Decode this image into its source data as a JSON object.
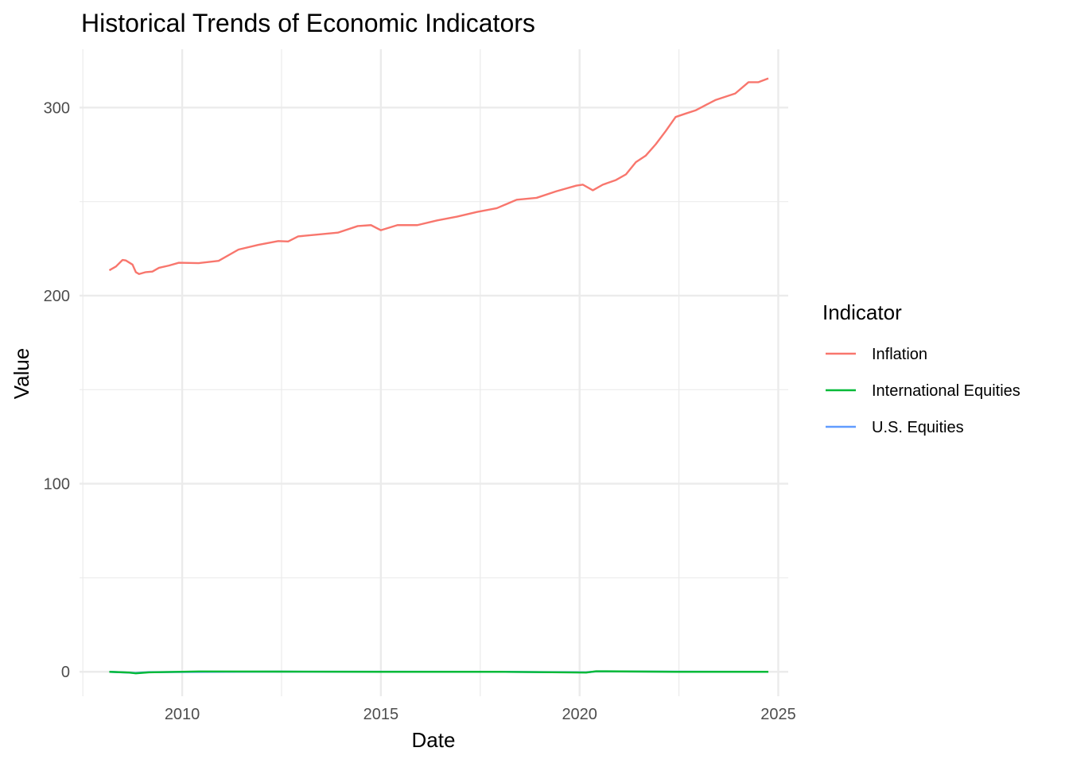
{
  "chart_data": {
    "type": "line",
    "title": "Historical Trends of Economic Indicators",
    "xlabel": "Date",
    "ylabel": "Value",
    "x_ticks": [
      "2010",
      "2015",
      "2020",
      "2025"
    ],
    "y_ticks": [
      "0",
      "100",
      "200",
      "300"
    ],
    "xlim": [
      "2007-06-01",
      "2025-04-01"
    ],
    "ylim": [
      -13,
      331
    ],
    "grid": true,
    "legend": {
      "title": "Indicator",
      "position": "right"
    },
    "series": [
      {
        "name": "Inflation",
        "color": "#F8766D",
        "points": [
          [
            "2008-03-01",
            213.5
          ],
          [
            "2008-05-01",
            215.5
          ],
          [
            "2008-07-01",
            219.0
          ],
          [
            "2008-08-01",
            218.7
          ],
          [
            "2008-10-01",
            216.5
          ],
          [
            "2008-11-01",
            212.5
          ],
          [
            "2008-12-01",
            211.5
          ],
          [
            "2009-02-01",
            212.5
          ],
          [
            "2009-04-01",
            212.8
          ],
          [
            "2009-06-01",
            214.8
          ],
          [
            "2009-09-01",
            216.0
          ],
          [
            "2009-12-01",
            217.5
          ],
          [
            "2010-06-01",
            217.3
          ],
          [
            "2010-12-01",
            218.5
          ],
          [
            "2011-06-01",
            224.5
          ],
          [
            "2011-12-01",
            227.0
          ],
          [
            "2012-06-01",
            229.0
          ],
          [
            "2012-09-01",
            228.8
          ],
          [
            "2012-12-01",
            231.5
          ],
          [
            "2013-06-01",
            232.5
          ],
          [
            "2013-12-01",
            233.5
          ],
          [
            "2014-06-01",
            237.0
          ],
          [
            "2014-10-01",
            237.5
          ],
          [
            "2015-01-01",
            234.8
          ],
          [
            "2015-06-01",
            237.5
          ],
          [
            "2015-12-01",
            237.5
          ],
          [
            "2016-06-01",
            240.0
          ],
          [
            "2016-12-01",
            242.0
          ],
          [
            "2017-06-01",
            244.5
          ],
          [
            "2017-12-01",
            246.5
          ],
          [
            "2018-06-01",
            251.0
          ],
          [
            "2018-12-01",
            252.0
          ],
          [
            "2019-06-01",
            255.5
          ],
          [
            "2019-12-01",
            258.5
          ],
          [
            "2020-02-01",
            259.0
          ],
          [
            "2020-05-01",
            256.0
          ],
          [
            "2020-08-01",
            259.0
          ],
          [
            "2020-12-01",
            261.5
          ],
          [
            "2021-03-01",
            264.5
          ],
          [
            "2021-06-01",
            271.0
          ],
          [
            "2021-09-01",
            274.5
          ],
          [
            "2021-12-01",
            280.5
          ],
          [
            "2022-03-01",
            287.5
          ],
          [
            "2022-06-01",
            295.0
          ],
          [
            "2022-09-01",
            296.8
          ],
          [
            "2022-12-01",
            298.5
          ],
          [
            "2023-06-01",
            304.0
          ],
          [
            "2023-12-01",
            307.5
          ],
          [
            "2024-04-01",
            313.5
          ],
          [
            "2024-07-01",
            313.5
          ],
          [
            "2024-10-01",
            315.5
          ]
        ]
      },
      {
        "name": "International Equities",
        "color": "#00BA38",
        "points": [
          [
            "2008-03-01",
            0.0
          ],
          [
            "2008-09-01",
            -0.4
          ],
          [
            "2008-11-01",
            -0.8
          ],
          [
            "2009-03-01",
            -0.3
          ],
          [
            "2010-06-01",
            0.2
          ],
          [
            "2012-06-01",
            0.1
          ],
          [
            "2015-01-01",
            0.0
          ],
          [
            "2018-01-01",
            0.0
          ],
          [
            "2020-03-01",
            -0.4
          ],
          [
            "2020-06-01",
            0.3
          ],
          [
            "2022-06-01",
            0.0
          ],
          [
            "2024-10-01",
            0.0
          ]
        ]
      },
      {
        "name": "U.S. Equities",
        "color": "#619CFF",
        "points": [
          [
            "2008-03-01",
            0.0
          ],
          [
            "2008-11-01",
            -0.6
          ],
          [
            "2009-03-01",
            -0.2
          ],
          [
            "2012-06-01",
            0.1
          ],
          [
            "2018-01-01",
            0.0
          ],
          [
            "2020-03-01",
            -0.3
          ],
          [
            "2020-06-01",
            0.2
          ],
          [
            "2024-10-01",
            0.0
          ]
        ]
      }
    ]
  }
}
